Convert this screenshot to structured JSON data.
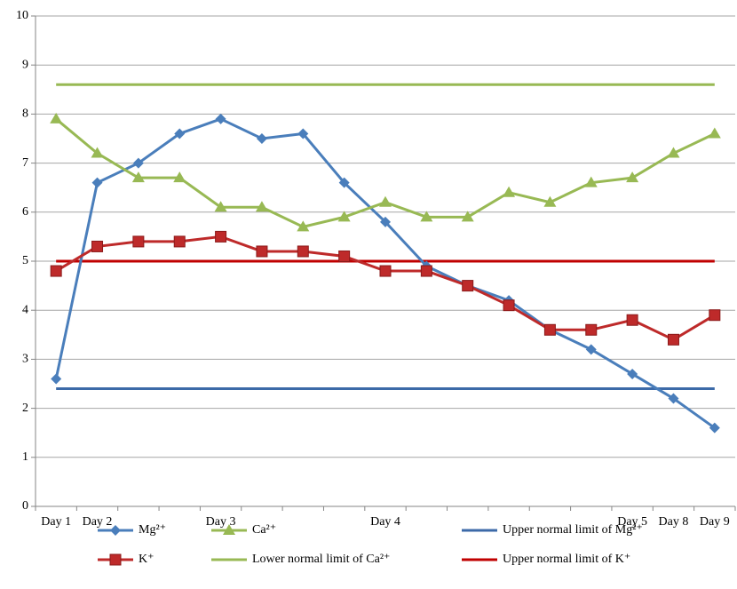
{
  "chart_data": {
    "type": "line",
    "categories": [
      "Day 1",
      "Day 2",
      null,
      null,
      "Day 3",
      null,
      null,
      null,
      "Day 4",
      null,
      null,
      null,
      null,
      null,
      "Day 5",
      "Day 8",
      "Day 9"
    ],
    "series": [
      {
        "name": "Mg²⁺",
        "color": "#4a7ebb",
        "marker": "diamond",
        "values": [
          2.6,
          6.6,
          7.0,
          7.6,
          7.9,
          7.5,
          7.6,
          6.6,
          5.8,
          4.9,
          4.5,
          4.2,
          3.6,
          3.2,
          2.7,
          2.2,
          1.6
        ]
      },
      {
        "name": "K⁺",
        "color": "#be2a2a",
        "marker": "square",
        "values": [
          4.8,
          5.3,
          5.4,
          5.4,
          5.5,
          5.2,
          5.2,
          5.1,
          4.8,
          4.8,
          4.5,
          4.1,
          3.6,
          3.6,
          3.8,
          3.4,
          3.9
        ]
      },
      {
        "name": "Ca²⁺",
        "color": "#98b954",
        "marker": "triangle",
        "values": [
          7.9,
          7.2,
          6.7,
          6.7,
          6.1,
          6.1,
          5.7,
          5.9,
          6.2,
          5.9,
          5.9,
          6.4,
          6.2,
          6.6,
          6.7,
          7.2,
          7.6
        ]
      },
      {
        "name": "Lower normal limit of Ca²⁺",
        "color": "#98b954",
        "values": [
          8.6,
          8.6,
          8.6,
          8.6,
          8.6,
          8.6,
          8.6,
          8.6,
          8.6,
          8.6,
          8.6,
          8.6,
          8.6,
          8.6,
          8.6,
          8.6,
          8.6
        ]
      },
      {
        "name": "Upper normal limit of Mg²⁺",
        "color": "#3c6aa8",
        "values": [
          2.4,
          2.4,
          2.4,
          2.4,
          2.4,
          2.4,
          2.4,
          2.4,
          2.4,
          2.4,
          2.4,
          2.4,
          2.4,
          2.4,
          2.4,
          2.4,
          2.4
        ]
      },
      {
        "name": "Upper normal limit of K⁺",
        "color": "#c00000",
        "values": [
          5.0,
          5.0,
          5.0,
          5.0,
          5.0,
          5.0,
          5.0,
          5.0,
          5.0,
          5.0,
          5.0,
          5.0,
          5.0,
          5.0,
          5.0,
          5.0,
          5.0
        ]
      }
    ],
    "ylim": [
      0,
      10
    ],
    "yticks": [
      0,
      1,
      2,
      3,
      4,
      5,
      6,
      7,
      8,
      9,
      10
    ],
    "grid": true
  }
}
